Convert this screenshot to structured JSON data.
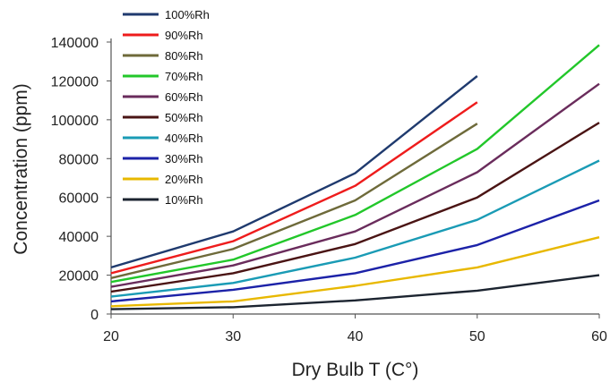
{
  "chart_data": {
    "type": "line",
    "title": "",
    "xlabel": "Dry Bulb T (C°)",
    "ylabel": "Concentration (ppm)",
    "x_ticks": [
      "20",
      "30",
      "40",
      "50",
      "60"
    ],
    "y_ticks": [
      "0",
      "20000",
      "40000",
      "60000",
      "80000",
      "100000",
      "120000",
      "140000"
    ],
    "xlim": [
      20,
      60
    ],
    "ylim": [
      0,
      140000
    ],
    "grid": false,
    "legend_position": "top-left",
    "series": [
      {
        "name": "100%Rh",
        "color": "#1f3a6e",
        "x": [
          20,
          30,
          40,
          50
        ],
        "values": [
          24000,
          42500,
          72500,
          122500
        ]
      },
      {
        "name": "90%Rh",
        "color": "#ee1c1c",
        "x": [
          20,
          30,
          40,
          50
        ],
        "values": [
          21000,
          37500,
          66000,
          109000
        ]
      },
      {
        "name": "80%Rh",
        "color": "#6e6a3a",
        "x": [
          20,
          30,
          40,
          50
        ],
        "values": [
          18500,
          33500,
          58500,
          98000
        ]
      },
      {
        "name": "70%Rh",
        "color": "#22c72a",
        "x": [
          20,
          30,
          40,
          50,
          60
        ],
        "values": [
          16500,
          28000,
          51000,
          85000,
          138500
        ]
      },
      {
        "name": "60%Rh",
        "color": "#6a2c5c",
        "x": [
          20,
          30,
          40,
          50,
          60
        ],
        "values": [
          14000,
          25000,
          42500,
          73000,
          118500
        ]
      },
      {
        "name": "50%Rh",
        "color": "#4a1414",
        "x": [
          20,
          30,
          40,
          50,
          60
        ],
        "values": [
          11500,
          21000,
          36000,
          60000,
          98500
        ]
      },
      {
        "name": "40%Rh",
        "color": "#1a9bb5",
        "x": [
          20,
          30,
          40,
          50,
          60
        ],
        "values": [
          9000,
          16000,
          29000,
          48500,
          79000
        ]
      },
      {
        "name": "30%Rh",
        "color": "#1c22a8",
        "x": [
          20,
          30,
          40,
          50,
          60
        ],
        "values": [
          6500,
          12500,
          21000,
          35500,
          58500
        ]
      },
      {
        "name": "20%Rh",
        "color": "#e8b800",
        "x": [
          20,
          30,
          40,
          50,
          60
        ],
        "values": [
          4000,
          6500,
          14500,
          24000,
          39500
        ]
      },
      {
        "name": "10%Rh",
        "color": "#1c2430",
        "x": [
          20,
          30,
          40,
          50,
          60
        ],
        "values": [
          2500,
          3500,
          7000,
          12000,
          20000
        ]
      }
    ]
  }
}
